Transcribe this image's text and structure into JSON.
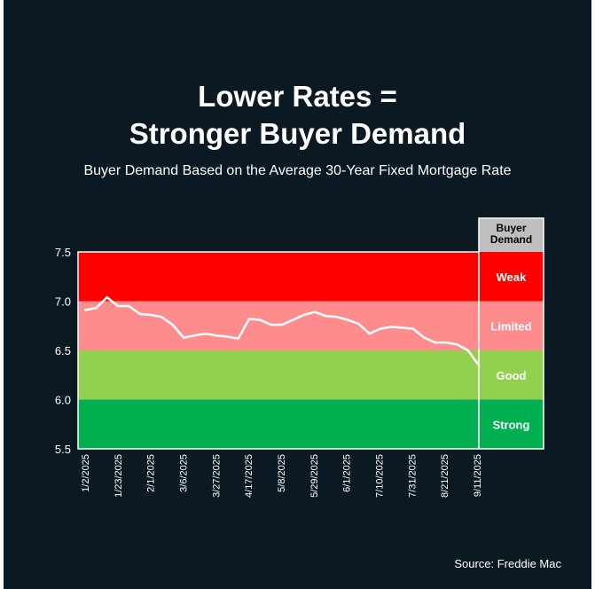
{
  "title_line1": "Lower Rates =",
  "title_line2": "Stronger Buyer Demand",
  "subtitle": "Buyer Demand Based on the Average 30-Year Fixed Mortgage Rate",
  "source": "Source: Freddie Mac",
  "colors": {
    "background": "#0b1a22",
    "weak": "#ff0000",
    "limited": "#ff8c8c",
    "good": "#92d050",
    "strong": "#00b050",
    "line": "#ffffff"
  },
  "chart_data": {
    "type": "line",
    "title": "Lower Rates = Stronger Buyer Demand",
    "xlabel": "",
    "ylabel": "",
    "ylim": [
      5.5,
      7.5
    ],
    "yticks": [
      "7.5",
      "7.0",
      "6.5",
      "6.0",
      "5.5"
    ],
    "xtick_labels": [
      "1/2/2025",
      "1/23/2025",
      "2/1/2025",
      "3/6/2025",
      "3/27/2025",
      "4/17/2025",
      "5/8/2025",
      "5/29/2025",
      "6/1/2025",
      "7/10/2025",
      "7/31/2025",
      "8/21/2025",
      "9/11/2025"
    ],
    "series": [
      {
        "name": "Average 30-Year Fixed Mortgage Rate",
        "values": [
          6.91,
          6.93,
          7.04,
          6.95,
          6.95,
          6.87,
          6.86,
          6.84,
          6.76,
          6.63,
          6.65,
          6.67,
          6.65,
          6.64,
          6.62,
          6.82,
          6.81,
          6.76,
          6.76,
          6.81,
          6.86,
          6.89,
          6.85,
          6.84,
          6.81,
          6.77,
          6.67,
          6.72,
          6.74,
          6.73,
          6.72,
          6.63,
          6.58,
          6.58,
          6.56,
          6.5,
          6.35
        ]
      }
    ],
    "bands": [
      {
        "label": "Weak",
        "from": 7.0,
        "to": 7.5
      },
      {
        "label": "Limited",
        "from": 6.5,
        "to": 7.0
      },
      {
        "label": "Good",
        "from": 6.0,
        "to": 6.5
      },
      {
        "label": "Strong",
        "from": 5.5,
        "to": 6.0
      }
    ],
    "band_header": "Buyer Demand"
  }
}
